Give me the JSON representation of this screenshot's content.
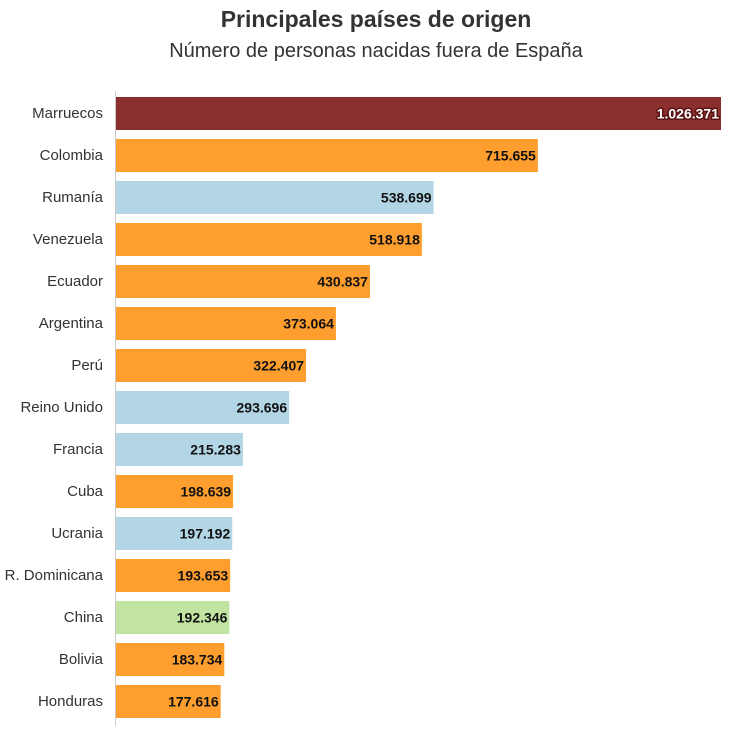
{
  "title": "Principales países de origen",
  "subtitle": "Número de personas nacidas fuera de España",
  "chart_data": {
    "type": "bar",
    "orientation": "horizontal",
    "title": "Principales países de origen",
    "subtitle": "Número de personas nacidas fuera de España",
    "xlabel": "",
    "ylabel": "",
    "grid": false,
    "legend": "none",
    "xlim": [
      0,
      1026371
    ],
    "categories": [
      "Marruecos",
      "Colombia",
      "Rumanía",
      "Venezuela",
      "Ecuador",
      "Argentina",
      "Perú",
      "Reino Unido",
      "Francia",
      "Cuba",
      "Ucrania",
      "R. Dominicana",
      "China",
      "Bolivia",
      "Honduras"
    ],
    "values": [
      1026371,
      715655,
      538699,
      518918,
      430837,
      373064,
      322407,
      293696,
      215283,
      198639,
      197192,
      193653,
      192346,
      183734,
      177616
    ],
    "value_labels": [
      "1.026.371",
      "715.655",
      "538.699",
      "518.918",
      "430.837",
      "373.064",
      "322.407",
      "293.696",
      "215.283",
      "198.639",
      "197.192",
      "193.653",
      "192.346",
      "183.734",
      "177.616"
    ],
    "bar_colors": [
      "#8b2e2e",
      "#fd9e2e",
      "#b3d6e6",
      "#fd9e2e",
      "#fd9e2e",
      "#fd9e2e",
      "#fd9e2e",
      "#b3d6e6",
      "#b3d6e6",
      "#fd9e2e",
      "#b3d6e6",
      "#fd9e2e",
      "#c2e4a2",
      "#fd9e2e",
      "#fd9e2e"
    ],
    "label_colors": [
      "#ffffff",
      "#111111",
      "#111111",
      "#111111",
      "#111111",
      "#111111",
      "#111111",
      "#111111",
      "#111111",
      "#111111",
      "#111111",
      "#111111",
      "#111111",
      "#111111",
      "#111111"
    ],
    "label_halo_colors": [
      "#5a1414",
      "#fd9e2e",
      "#b3d6e6",
      "#fd9e2e",
      "#fd9e2e",
      "#fd9e2e",
      "#fd9e2e",
      "#b3d6e6",
      "#b3d6e6",
      "#fd9e2e",
      "#b3d6e6",
      "#fd9e2e",
      "#c2e4a2",
      "#fd9e2e",
      "#fd9e2e"
    ],
    "axis_color": "#cccccc"
  }
}
